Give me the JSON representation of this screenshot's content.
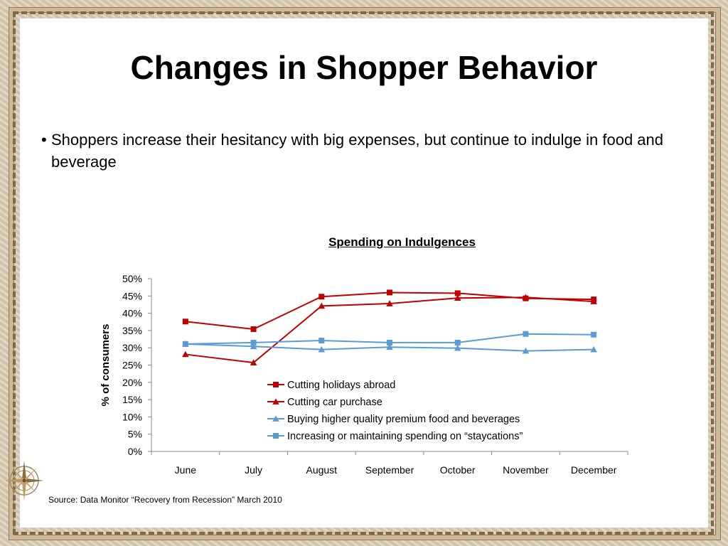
{
  "slide": {
    "title": "Changes in Shopper Behavior",
    "bullet_marker": "•",
    "bullet": "Shoppers increase their hesitancy with big expenses, but continue to indulge in food and beverage",
    "source": "Source: Data Monitor “Recovery from Recession” March 2010",
    "compass_icon": "compass-rose-icon"
  },
  "chart_data": {
    "type": "line",
    "title": "Spending on Indulgences",
    "ylabel": "% of consumers",
    "xlabel": "",
    "categories": [
      "June",
      "July",
      "August",
      "September",
      "October",
      "November",
      "December"
    ],
    "ylim": [
      0,
      50
    ],
    "yticks": [
      0,
      5,
      10,
      15,
      20,
      25,
      30,
      35,
      40,
      45,
      50
    ],
    "y_unit": "%",
    "grid": false,
    "legend_position": "inside-lower-center",
    "series": [
      {
        "name": "Cutting holidays abroad",
        "color": "#c00000",
        "marker": "square",
        "values": [
          37.6,
          35.4,
          44.8,
          46.0,
          45.8,
          44.3,
          44.0
        ]
      },
      {
        "name": "Cutting car purchase",
        "color": "#c00000",
        "marker": "triangle",
        "values": [
          28.1,
          25.7,
          42.1,
          42.8,
          44.4,
          44.6,
          43.4
        ]
      },
      {
        "name": "Buying higher quality premium food and beverages",
        "color": "#5b9bd5",
        "marker": "triangle",
        "values": [
          31.1,
          30.4,
          29.5,
          30.2,
          29.9,
          29.1,
          29.5
        ]
      },
      {
        "name": "Increasing or maintaining spending on “staycations”",
        "color": "#5b9bd5",
        "marker": "square",
        "values": [
          31.1,
          31.5,
          32.1,
          31.5,
          31.5,
          34.0,
          33.8
        ]
      }
    ]
  }
}
